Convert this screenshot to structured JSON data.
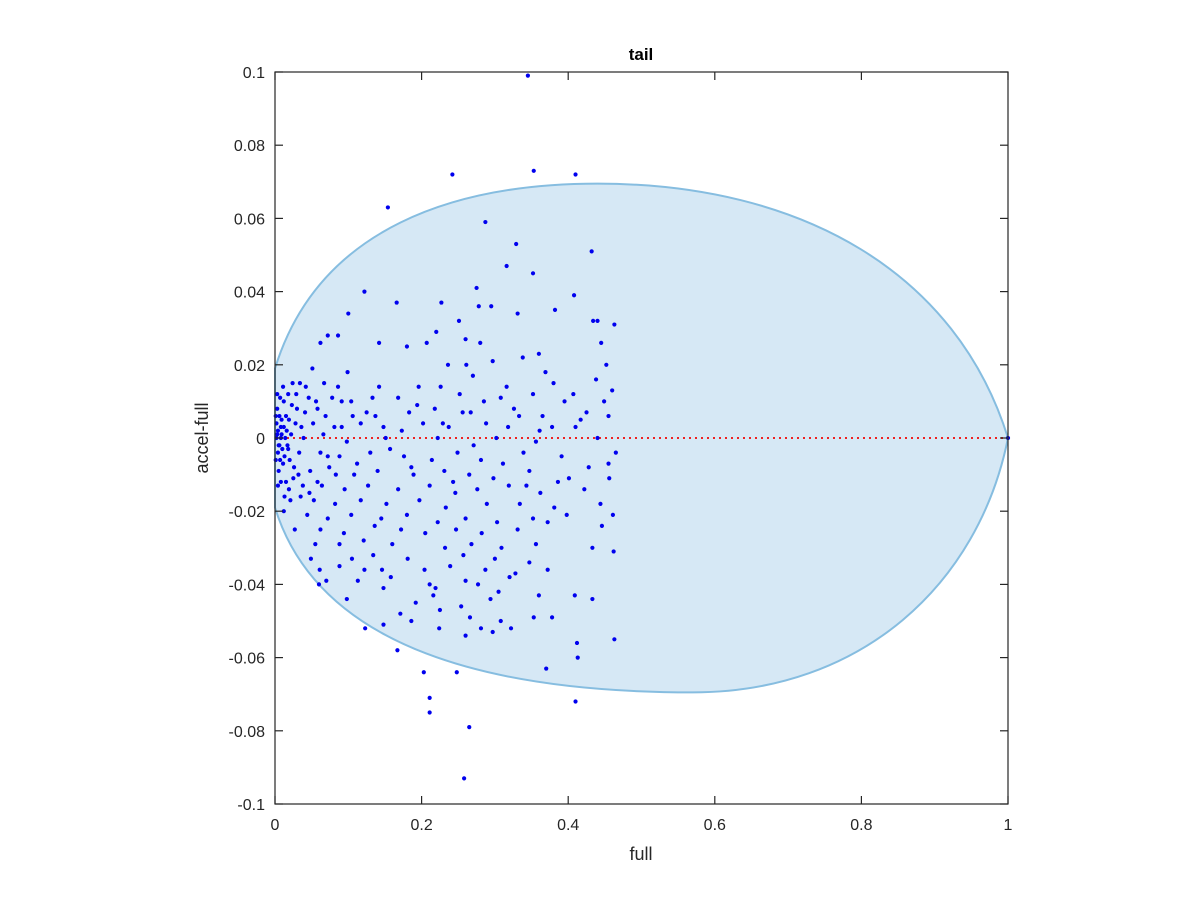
{
  "chart_data": {
    "type": "scatter",
    "title": "tail",
    "xlabel": "full",
    "ylabel": "accel-full",
    "xlim": [
      0,
      1
    ],
    "ylim": [
      -0.1,
      0.1
    ],
    "xticks": [
      0,
      0.2,
      0.4,
      0.6,
      0.8,
      1
    ],
    "xtick_labels": [
      "0",
      "0.2",
      "0.4",
      "0.6",
      "0.8",
      "1"
    ],
    "yticks": [
      -0.1,
      -0.08,
      -0.06,
      -0.04,
      -0.02,
      0,
      0.02,
      0.04,
      0.06,
      0.08,
      0.1
    ],
    "ytick_labels": [
      "-0.1",
      "-0.08",
      "-0.06",
      "-0.04",
      "-0.02",
      "0",
      "0.02",
      "0.04",
      "0.06",
      "0.08",
      "0.1"
    ],
    "grid": false,
    "colors": {
      "points": "#0000ee",
      "ellipse_fill": "#d6e8f5",
      "ellipse_edge": "#86bde0",
      "reference_line": "#ee2222",
      "axes": "#262626"
    },
    "reference_line": {
      "y": 0,
      "style": "dotted"
    },
    "region": {
      "shape": "ellipse",
      "top_peak": [
        0.44,
        0.0695
      ],
      "bottom_peak": [
        0.57,
        -0.0695
      ],
      "left_intercepts": [
        [
          0,
          0.019
        ],
        [
          0,
          -0.019
        ]
      ],
      "right_point": [
        1.0,
        0
      ]
    },
    "points": [
      [
        0.345,
        0.099
      ],
      [
        0.242,
        0.072
      ],
      [
        0.353,
        0.073
      ],
      [
        0.41,
        0.072
      ],
      [
        0.154,
        0.063
      ],
      [
        0.287,
        0.059
      ],
      [
        0.329,
        0.053
      ],
      [
        0.432,
        0.051
      ],
      [
        0.316,
        0.047
      ],
      [
        0.352,
        0.045
      ],
      [
        0.275,
        0.041
      ],
      [
        0.122,
        0.04
      ],
      [
        0.408,
        0.039
      ],
      [
        0.227,
        0.037
      ],
      [
        0.166,
        0.037
      ],
      [
        0.295,
        0.036
      ],
      [
        0.278,
        0.036
      ],
      [
        0.382,
        0.035
      ],
      [
        0.331,
        0.034
      ],
      [
        0.1,
        0.034
      ],
      [
        0.251,
        0.032
      ],
      [
        0.434,
        0.032
      ],
      [
        0.44,
        0.032
      ],
      [
        0.22,
        0.029
      ],
      [
        0.463,
        0.031
      ],
      [
        0.072,
        0.028
      ],
      [
        0.086,
        0.028
      ],
      [
        0.062,
        0.026
      ],
      [
        0.142,
        0.026
      ],
      [
        0.26,
        0.027
      ],
      [
        0.28,
        0.026
      ],
      [
        0.36,
        0.023
      ],
      [
        0.445,
        0.026
      ],
      [
        0.18,
        0.025
      ],
      [
        0.207,
        0.026
      ],
      [
        0.338,
        0.022
      ],
      [
        0.452,
        0.02
      ],
      [
        0.051,
        0.019
      ],
      [
        0.099,
        0.018
      ],
      [
        0.236,
        0.02
      ],
      [
        0.261,
        0.02
      ],
      [
        0.297,
        0.021
      ],
      [
        0.369,
        0.018
      ],
      [
        0.024,
        0.015
      ],
      [
        0.034,
        0.015
      ],
      [
        0.067,
        0.015
      ],
      [
        0.086,
        0.014
      ],
      [
        0.142,
        0.014
      ],
      [
        0.196,
        0.014
      ],
      [
        0.226,
        0.014
      ],
      [
        0.27,
        0.017
      ],
      [
        0.316,
        0.014
      ],
      [
        0.38,
        0.015
      ],
      [
        0.407,
        0.012
      ],
      [
        0.438,
        0.016
      ],
      [
        0.46,
        0.013
      ],
      [
        0.012,
        0.01
      ],
      [
        0.046,
        0.011
      ],
      [
        0.091,
        0.01
      ],
      [
        0.133,
        0.011
      ],
      [
        0.168,
        0.011
      ],
      [
        0.252,
        0.012
      ],
      [
        0.308,
        0.011
      ],
      [
        0.352,
        0.012
      ],
      [
        0.395,
        0.01
      ],
      [
        0.015,
        0.006
      ],
      [
        0.041,
        0.007
      ],
      [
        0.058,
        0.008
      ],
      [
        0.106,
        0.006
      ],
      [
        0.125,
        0.007
      ],
      [
        0.183,
        0.007
      ],
      [
        0.218,
        0.008
      ],
      [
        0.267,
        0.007
      ],
      [
        0.333,
        0.006
      ],
      [
        0.365,
        0.006
      ],
      [
        0.425,
        0.007
      ],
      [
        0.455,
        0.006
      ],
      [
        0.008,
        0.003
      ],
      [
        0.028,
        0.004
      ],
      [
        0.052,
        0.004
      ],
      [
        0.081,
        0.003
      ],
      [
        0.117,
        0.004
      ],
      [
        0.148,
        0.003
      ],
      [
        0.202,
        0.004
      ],
      [
        0.237,
        0.003
      ],
      [
        0.288,
        0.004
      ],
      [
        0.318,
        0.003
      ],
      [
        0.378,
        0.003
      ],
      [
        0.41,
        0.003
      ],
      [
        0.003,
        0.001
      ],
      [
        0.009,
        0.001
      ],
      [
        0.022,
        0.001
      ],
      [
        0.039,
        0.0
      ],
      [
        0.066,
        0.001
      ],
      [
        0.098,
        -0.001
      ],
      [
        0.151,
        0.0
      ],
      [
        0.222,
        0.0
      ],
      [
        0.302,
        0.0
      ],
      [
        0.356,
        -0.001
      ],
      [
        0.44,
        0.0
      ],
      [
        0.465,
        -0.004
      ],
      [
        0.005,
        -0.002
      ],
      [
        0.018,
        -0.003
      ],
      [
        0.033,
        -0.004
      ],
      [
        0.062,
        -0.004
      ],
      [
        0.088,
        -0.005
      ],
      [
        0.13,
        -0.004
      ],
      [
        0.176,
        -0.005
      ],
      [
        0.249,
        -0.004
      ],
      [
        0.281,
        -0.006
      ],
      [
        0.339,
        -0.004
      ],
      [
        0.391,
        -0.005
      ],
      [
        0.455,
        -0.007
      ],
      [
        0.011,
        -0.007
      ],
      [
        0.026,
        -0.008
      ],
      [
        0.048,
        -0.009
      ],
      [
        0.074,
        -0.008
      ],
      [
        0.108,
        -0.01
      ],
      [
        0.14,
        -0.009
      ],
      [
        0.189,
        -0.01
      ],
      [
        0.231,
        -0.009
      ],
      [
        0.265,
        -0.01
      ],
      [
        0.298,
        -0.011
      ],
      [
        0.347,
        -0.009
      ],
      [
        0.401,
        -0.011
      ],
      [
        0.456,
        -0.011
      ],
      [
        0.015,
        -0.012
      ],
      [
        0.038,
        -0.013
      ],
      [
        0.064,
        -0.013
      ],
      [
        0.095,
        -0.014
      ],
      [
        0.127,
        -0.013
      ],
      [
        0.168,
        -0.014
      ],
      [
        0.211,
        -0.013
      ],
      [
        0.246,
        -0.015
      ],
      [
        0.276,
        -0.014
      ],
      [
        0.319,
        -0.013
      ],
      [
        0.362,
        -0.015
      ],
      [
        0.422,
        -0.014
      ],
      [
        0.021,
        -0.017
      ],
      [
        0.053,
        -0.017
      ],
      [
        0.082,
        -0.018
      ],
      [
        0.117,
        -0.017
      ],
      [
        0.152,
        -0.018
      ],
      [
        0.197,
        -0.017
      ],
      [
        0.233,
        -0.019
      ],
      [
        0.289,
        -0.018
      ],
      [
        0.334,
        -0.018
      ],
      [
        0.381,
        -0.019
      ],
      [
        0.444,
        -0.018
      ],
      [
        0.012,
        -0.02
      ],
      [
        0.044,
        -0.021
      ],
      [
        0.072,
        -0.022
      ],
      [
        0.104,
        -0.021
      ],
      [
        0.145,
        -0.022
      ],
      [
        0.18,
        -0.021
      ],
      [
        0.222,
        -0.023
      ],
      [
        0.26,
        -0.022
      ],
      [
        0.303,
        -0.023
      ],
      [
        0.352,
        -0.022
      ],
      [
        0.398,
        -0.021
      ],
      [
        0.461,
        -0.021
      ],
      [
        0.027,
        -0.025
      ],
      [
        0.062,
        -0.025
      ],
      [
        0.094,
        -0.026
      ],
      [
        0.136,
        -0.024
      ],
      [
        0.172,
        -0.025
      ],
      [
        0.205,
        -0.026
      ],
      [
        0.247,
        -0.025
      ],
      [
        0.282,
        -0.026
      ],
      [
        0.331,
        -0.025
      ],
      [
        0.372,
        -0.023
      ],
      [
        0.446,
        -0.024
      ],
      [
        0.055,
        -0.029
      ],
      [
        0.088,
        -0.029
      ],
      [
        0.121,
        -0.028
      ],
      [
        0.16,
        -0.029
      ],
      [
        0.232,
        -0.03
      ],
      [
        0.268,
        -0.029
      ],
      [
        0.309,
        -0.03
      ],
      [
        0.356,
        -0.029
      ],
      [
        0.433,
        -0.03
      ],
      [
        0.049,
        -0.033
      ],
      [
        0.105,
        -0.033
      ],
      [
        0.134,
        -0.032
      ],
      [
        0.181,
        -0.033
      ],
      [
        0.257,
        -0.032
      ],
      [
        0.3,
        -0.033
      ],
      [
        0.347,
        -0.034
      ],
      [
        0.462,
        -0.031
      ],
      [
        0.061,
        -0.036
      ],
      [
        0.088,
        -0.035
      ],
      [
        0.122,
        -0.036
      ],
      [
        0.146,
        -0.036
      ],
      [
        0.204,
        -0.036
      ],
      [
        0.239,
        -0.035
      ],
      [
        0.287,
        -0.036
      ],
      [
        0.328,
        -0.037
      ],
      [
        0.372,
        -0.036
      ],
      [
        0.07,
        -0.039
      ],
      [
        0.113,
        -0.039
      ],
      [
        0.158,
        -0.038
      ],
      [
        0.211,
        -0.04
      ],
      [
        0.26,
        -0.039
      ],
      [
        0.32,
        -0.038
      ],
      [
        0.06,
        -0.04
      ],
      [
        0.148,
        -0.041
      ],
      [
        0.219,
        -0.041
      ],
      [
        0.277,
        -0.04
      ],
      [
        0.305,
        -0.042
      ],
      [
        0.409,
        -0.043
      ],
      [
        0.216,
        -0.043
      ],
      [
        0.294,
        -0.044
      ],
      [
        0.36,
        -0.043
      ],
      [
        0.098,
        -0.044
      ],
      [
        0.192,
        -0.045
      ],
      [
        0.254,
        -0.046
      ],
      [
        0.433,
        -0.044
      ],
      [
        0.225,
        -0.047
      ],
      [
        0.171,
        -0.048
      ],
      [
        0.266,
        -0.049
      ],
      [
        0.353,
        -0.049
      ],
      [
        0.378,
        -0.049
      ],
      [
        0.148,
        -0.051
      ],
      [
        0.186,
        -0.05
      ],
      [
        0.308,
        -0.05
      ],
      [
        0.224,
        -0.052
      ],
      [
        0.123,
        -0.052
      ],
      [
        0.281,
        -0.052
      ],
      [
        0.297,
        -0.053
      ],
      [
        0.322,
        -0.052
      ],
      [
        0.26,
        -0.054
      ],
      [
        0.412,
        -0.056
      ],
      [
        0.463,
        -0.055
      ],
      [
        0.167,
        -0.058
      ],
      [
        0.413,
        -0.06
      ],
      [
        0.203,
        -0.064
      ],
      [
        0.37,
        -0.063
      ],
      [
        0.248,
        -0.064
      ],
      [
        0.211,
        -0.071
      ],
      [
        0.41,
        -0.072
      ],
      [
        0.211,
        -0.075
      ],
      [
        0.265,
        -0.079
      ],
      [
        0.258,
        -0.093
      ],
      [
        1.0,
        0.0
      ],
      [
        0.002,
        0.004
      ],
      [
        0.004,
        -0.004
      ],
      [
        0.006,
        0.006
      ],
      [
        0.007,
        -0.006
      ],
      [
        0.003,
        0.008
      ],
      [
        0.005,
        -0.009
      ],
      [
        0.009,
        0.005
      ],
      [
        0.01,
        -0.003
      ],
      [
        0.012,
        0.003
      ],
      [
        0.013,
        -0.005
      ],
      [
        0.014,
        0.0
      ],
      [
        0.016,
        0.002
      ],
      [
        0.017,
        -0.002
      ],
      [
        0.019,
        0.005
      ],
      [
        0.02,
        -0.006
      ],
      [
        0.023,
        0.009
      ],
      [
        0.025,
        -0.011
      ],
      [
        0.03,
        0.008
      ],
      [
        0.032,
        -0.01
      ],
      [
        0.036,
        0.003
      ],
      [
        0.002,
        0.0
      ],
      [
        0.004,
        0.002
      ],
      [
        0.006,
        -0.002
      ],
      [
        0.008,
        0.0
      ],
      [
        0.001,
        0.006
      ],
      [
        0.001,
        -0.006
      ],
      [
        0.003,
        0.012
      ],
      [
        0.004,
        -0.013
      ],
      [
        0.007,
        0.011
      ],
      [
        0.008,
        -0.012
      ],
      [
        0.011,
        0.014
      ],
      [
        0.013,
        -0.016
      ],
      [
        0.018,
        0.012
      ],
      [
        0.019,
        -0.014
      ],
      [
        0.029,
        0.012
      ],
      [
        0.035,
        -0.016
      ],
      [
        0.042,
        0.014
      ],
      [
        0.047,
        -0.015
      ],
      [
        0.056,
        0.01
      ],
      [
        0.058,
        -0.012
      ],
      [
        0.069,
        0.006
      ],
      [
        0.072,
        -0.005
      ],
      [
        0.078,
        0.011
      ],
      [
        0.083,
        -0.01
      ],
      [
        0.091,
        0.003
      ],
      [
        0.104,
        0.01
      ],
      [
        0.112,
        -0.007
      ],
      [
        0.137,
        0.006
      ],
      [
        0.157,
        -0.003
      ],
      [
        0.173,
        0.002
      ],
      [
        0.186,
        -0.008
      ],
      [
        0.194,
        0.009
      ],
      [
        0.214,
        -0.006
      ],
      [
        0.229,
        0.004
      ],
      [
        0.243,
        -0.012
      ],
      [
        0.256,
        0.007
      ],
      [
        0.271,
        -0.002
      ],
      [
        0.285,
        0.01
      ],
      [
        0.311,
        -0.007
      ],
      [
        0.326,
        0.008
      ],
      [
        0.343,
        -0.013
      ],
      [
        0.361,
        0.002
      ],
      [
        0.386,
        -0.012
      ],
      [
        0.417,
        0.005
      ],
      [
        0.428,
        -0.008
      ],
      [
        0.449,
        0.01
      ]
    ]
  }
}
